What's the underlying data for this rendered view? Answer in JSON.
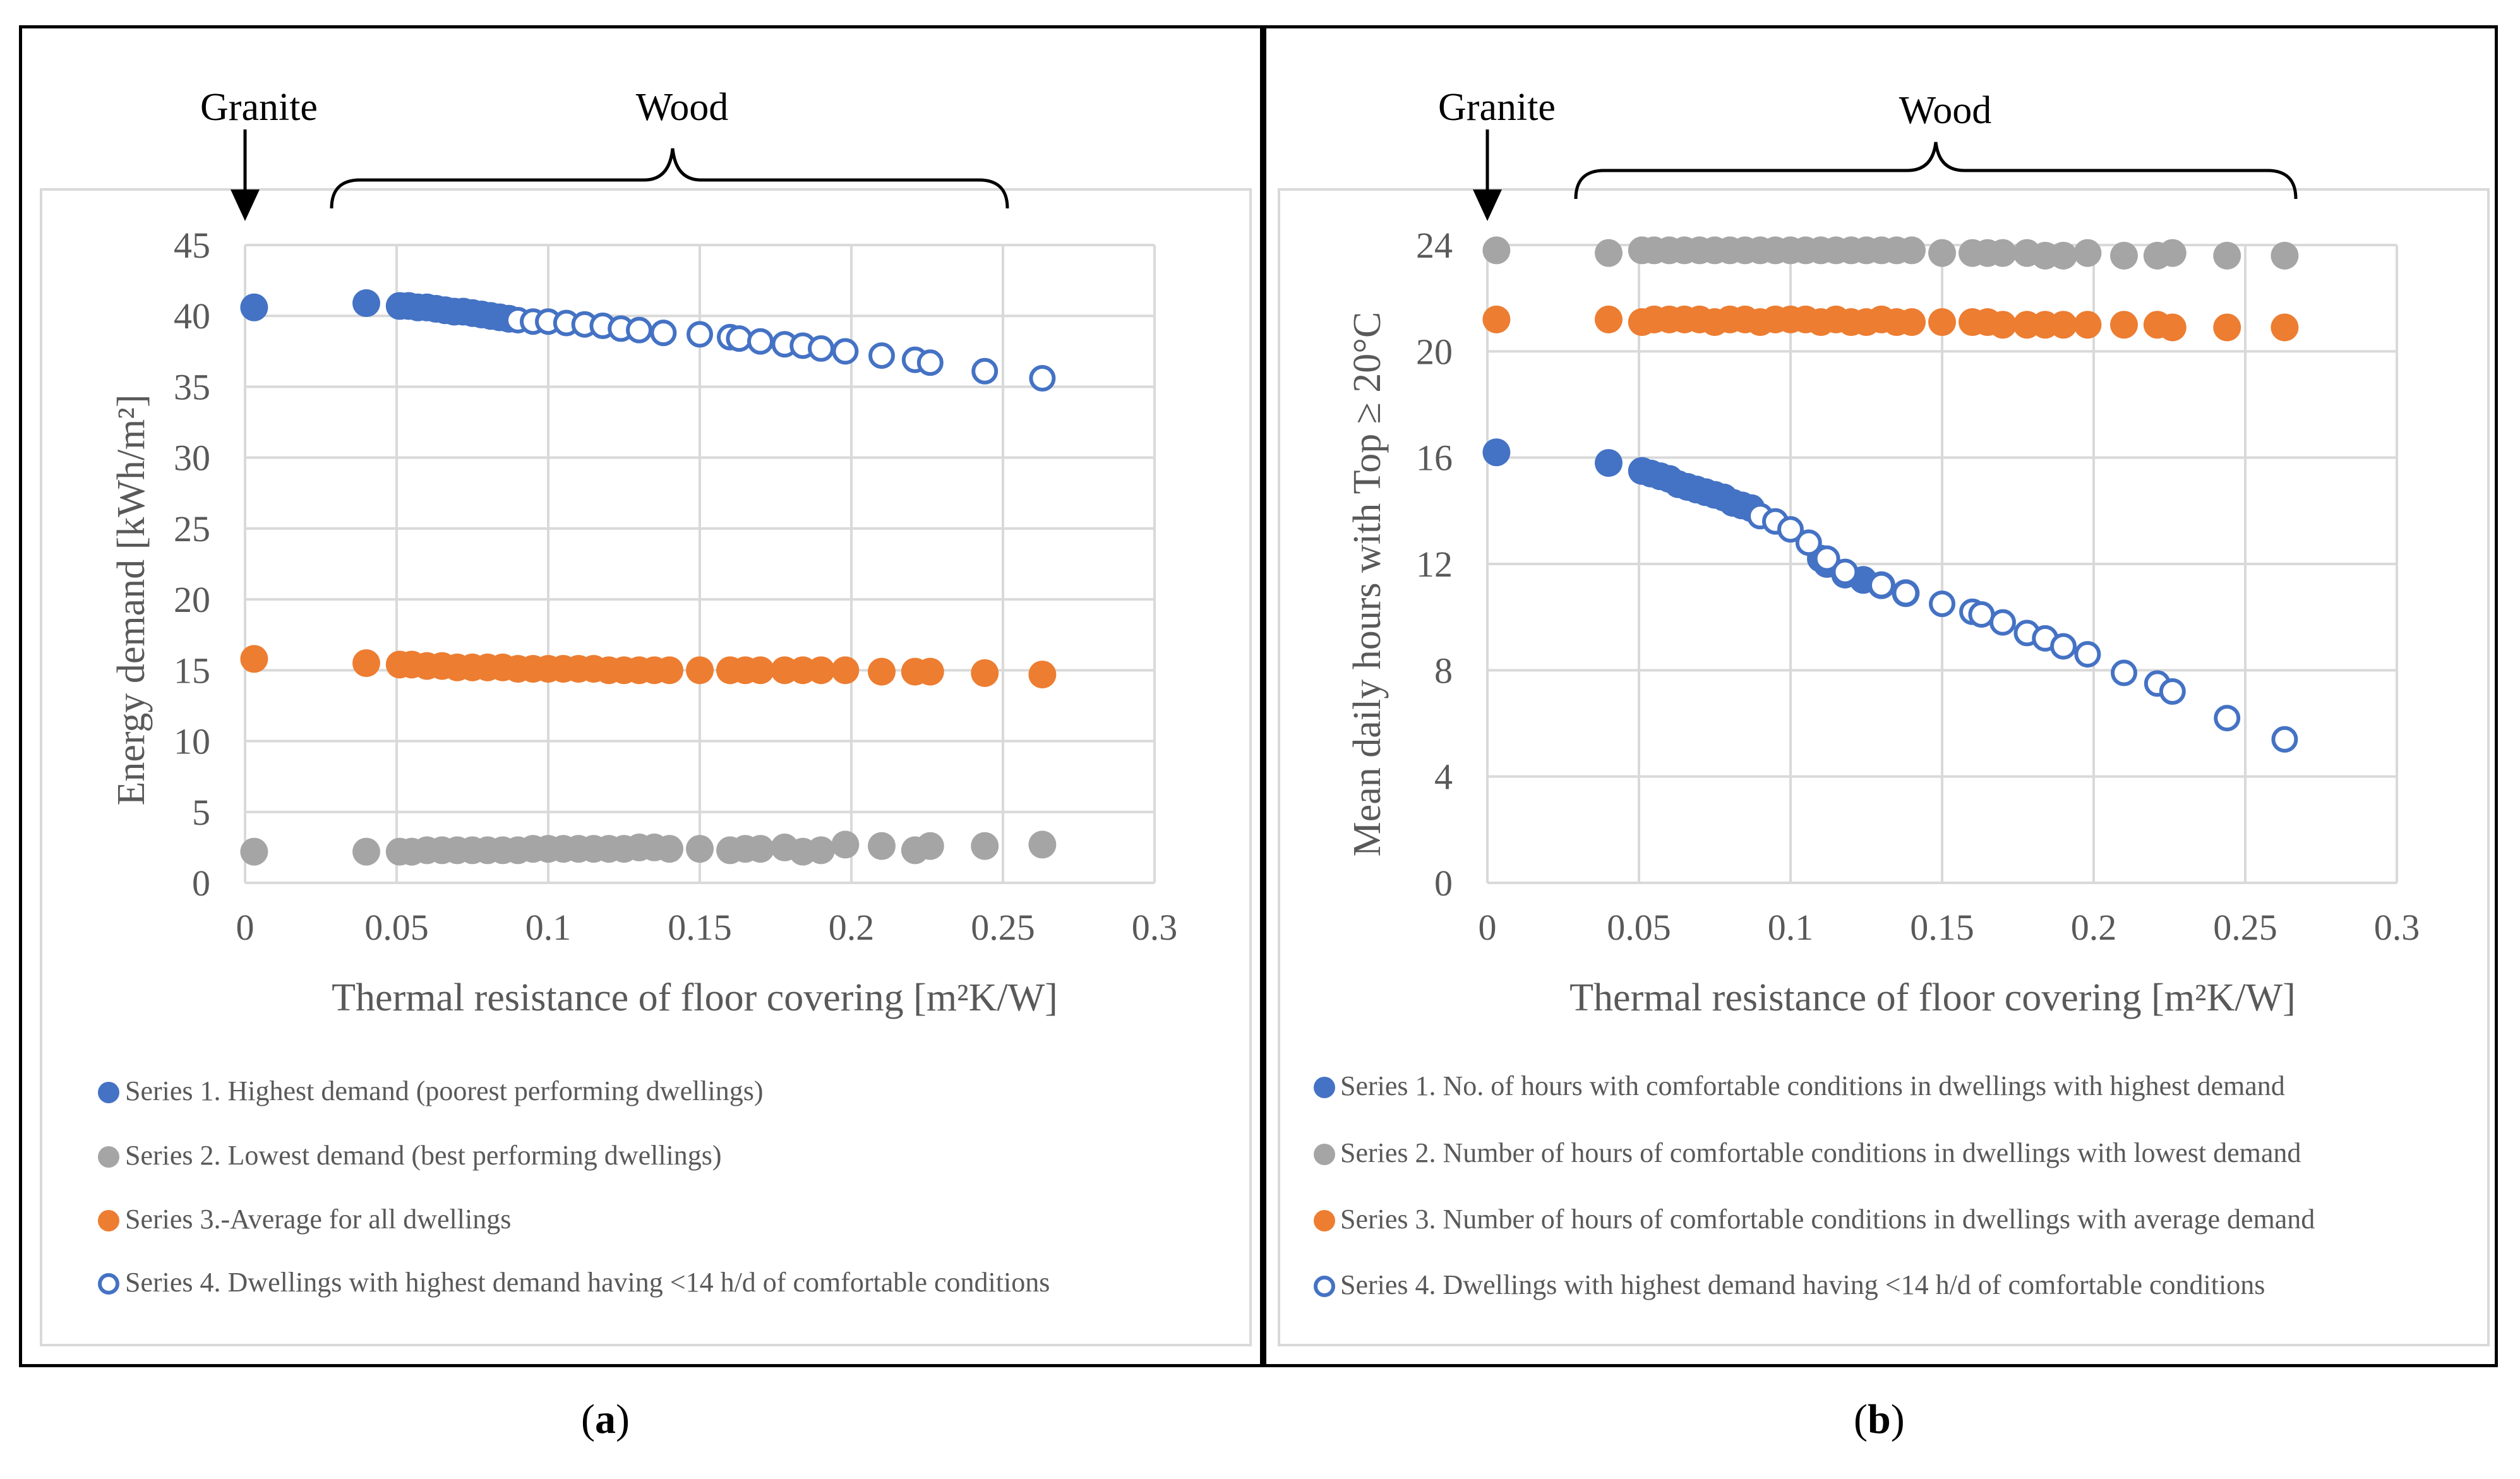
{
  "panels": {
    "a": {
      "label": "a",
      "annotations": {
        "granite": "Granite",
        "wood": "Wood"
      },
      "legend": [
        {
          "name": "Series 1. Highest demand (poorest performing dwellings)",
          "color": "#4472C4",
          "marker": "filled"
        },
        {
          "name": "Series 2. Lowest demand (best performing dwellings)",
          "color": "#A5A5A5",
          "marker": "filled"
        },
        {
          "name": "Series 3.-Average for all dwellings",
          "color": "#ED7D31",
          "marker": "filled"
        },
        {
          "name": "Series 4. Dwellings with highest demand having  <14 h/d of comfortable conditions",
          "color": "#4472C4",
          "marker": "open"
        }
      ]
    },
    "b": {
      "label": "b",
      "annotations": {
        "granite": "Granite",
        "wood": "Wood"
      },
      "legend": [
        {
          "name": "Series 1. No. of hours with comfortable conditions in dwellings with highest demand",
          "color": "#4472C4",
          "marker": "filled"
        },
        {
          "name": "Series 2. Number of hours of comfortable conditions in dwellings with lowest demand",
          "color": "#A5A5A5",
          "marker": "filled"
        },
        {
          "name": "Series 3. Number of hours of comfortable conditions in dwellings with average demand",
          "color": "#ED7D31",
          "marker": "filled"
        },
        {
          "name": "Series 4. Dwellings with highest demand having <14 h/d of comfortable conditions",
          "color": "#4472C4",
          "marker": "open"
        }
      ]
    }
  },
  "chart_data": [
    {
      "id": "a",
      "type": "scatter",
      "title": "",
      "xlabel": "Thermal resistance of floor covering [m²K/W]",
      "ylabel": "Energy demand [kWh/m²]",
      "xlim": [
        0,
        0.3
      ],
      "ylim": [
        0,
        45
      ],
      "x_ticks": [
        "0",
        "0.05",
        "0.1",
        "0.15",
        "0.2",
        "0.25",
        "0.3"
      ],
      "x_tick_values": [
        0,
        0.05,
        0.1,
        0.15,
        0.2,
        0.25,
        0.3
      ],
      "y_ticks": [
        "0",
        "5",
        "10",
        "15",
        "20",
        "25",
        "30",
        "35",
        "40",
        "45"
      ],
      "y_tick_values": [
        0,
        5,
        10,
        15,
        20,
        25,
        30,
        35,
        40,
        45
      ],
      "grid": true,
      "series": [
        {
          "name": "Series 1. Highest demand (poorest performing dwellings)",
          "color": "#4472C4",
          "marker": "filled",
          "x": [
            0.003,
            0.04,
            0.051,
            0.054,
            0.057,
            0.06,
            0.063,
            0.066,
            0.069,
            0.072,
            0.075,
            0.078,
            0.081,
            0.084,
            0.087
          ],
          "y": [
            40.6,
            40.9,
            40.7,
            40.7,
            40.6,
            40.6,
            40.5,
            40.4,
            40.3,
            40.3,
            40.2,
            40.1,
            40.0,
            39.9,
            39.8
          ]
        },
        {
          "name": "Series 2. Lowest demand (best performing dwellings)",
          "color": "#A5A5A5",
          "marker": "filled",
          "x": [
            0.003,
            0.04,
            0.051,
            0.055,
            0.06,
            0.065,
            0.07,
            0.075,
            0.08,
            0.085,
            0.09,
            0.095,
            0.1,
            0.105,
            0.11,
            0.115,
            0.12,
            0.125,
            0.13,
            0.135,
            0.14,
            0.15,
            0.16,
            0.165,
            0.17,
            0.178,
            0.184,
            0.19,
            0.198,
            0.21,
            0.221,
            0.226,
            0.244,
            0.263
          ],
          "y": [
            2.2,
            2.2,
            2.2,
            2.2,
            2.3,
            2.3,
            2.3,
            2.3,
            2.3,
            2.3,
            2.3,
            2.4,
            2.4,
            2.4,
            2.4,
            2.4,
            2.4,
            2.4,
            2.5,
            2.5,
            2.4,
            2.4,
            2.3,
            2.4,
            2.4,
            2.5,
            2.2,
            2.3,
            2.7,
            2.6,
            2.3,
            2.6,
            2.6,
            2.7
          ]
        },
        {
          "name": "Series 3.-Average for all dwellings",
          "color": "#ED7D31",
          "marker": "filled",
          "x": [
            0.003,
            0.04,
            0.051,
            0.055,
            0.06,
            0.065,
            0.07,
            0.075,
            0.08,
            0.085,
            0.09,
            0.095,
            0.1,
            0.105,
            0.11,
            0.115,
            0.12,
            0.125,
            0.13,
            0.135,
            0.14,
            0.15,
            0.16,
            0.165,
            0.17,
            0.178,
            0.184,
            0.19,
            0.198,
            0.21,
            0.221,
            0.226,
            0.244,
            0.263
          ],
          "y": [
            15.8,
            15.5,
            15.4,
            15.4,
            15.3,
            15.3,
            15.2,
            15.2,
            15.2,
            15.2,
            15.1,
            15.1,
            15.1,
            15.1,
            15.1,
            15.1,
            15.0,
            15.0,
            15.0,
            15.0,
            15.0,
            15.0,
            15.0,
            15.0,
            15.0,
            15.0,
            15.0,
            15.0,
            15.0,
            14.9,
            14.9,
            14.9,
            14.8,
            14.7
          ]
        },
        {
          "name": "Series 4. Dwellings with highest demand having  <14 h/d of comfortable conditions",
          "color": "#4472C4",
          "marker": "open",
          "x": [
            0.09,
            0.095,
            0.1,
            0.106,
            0.112,
            0.118,
            0.124,
            0.13,
            0.138,
            0.15,
            0.16,
            0.163,
            0.17,
            0.178,
            0.184,
            0.19,
            0.198,
            0.21,
            0.221,
            0.226,
            0.244,
            0.263
          ],
          "y": [
            39.7,
            39.6,
            39.6,
            39.5,
            39.4,
            39.3,
            39.1,
            39.0,
            38.8,
            38.7,
            38.5,
            38.4,
            38.2,
            38.0,
            37.9,
            37.7,
            37.5,
            37.2,
            36.9,
            36.7,
            36.1,
            35.6
          ]
        }
      ]
    },
    {
      "id": "b",
      "type": "scatter",
      "title": "",
      "xlabel": "Thermal resistance of floor covering [m²K/W]",
      "ylabel": "Mean daily hours with Top ≥ 20°C",
      "xlim": [
        0,
        0.3
      ],
      "ylim": [
        0,
        24
      ],
      "x_ticks": [
        "0",
        "0.05",
        "0.1",
        "0.15",
        "0.2",
        "0.25",
        "0.3"
      ],
      "x_tick_values": [
        0,
        0.05,
        0.1,
        0.15,
        0.2,
        0.25,
        0.3
      ],
      "y_ticks": [
        "0",
        "4",
        "8",
        "12",
        "16",
        "20",
        "24"
      ],
      "y_tick_values": [
        0,
        4,
        8,
        12,
        16,
        20,
        24
      ],
      "grid": true,
      "series": [
        {
          "name": "Series 1. No. of hours with comfortable conditions in dwellings with highest demand",
          "color": "#4472C4",
          "marker": "filled",
          "x": [
            0.003,
            0.04,
            0.051,
            0.054,
            0.057,
            0.06,
            0.063,
            0.066,
            0.069,
            0.072,
            0.075,
            0.078,
            0.081,
            0.084,
            0.087,
            0.11,
            0.112,
            0.118,
            0.124,
            0.13,
            0.138
          ],
          "y": [
            16.2,
            15.8,
            15.5,
            15.4,
            15.3,
            15.2,
            15.0,
            14.9,
            14.8,
            14.7,
            14.6,
            14.5,
            14.3,
            14.2,
            14.1,
            12.2,
            12.0,
            11.6,
            11.4,
            11.2,
            10.9
          ]
        },
        {
          "name": "Series 2. Number of hours of comfortable conditions in dwellings with lowest demand",
          "color": "#A5A5A5",
          "marker": "filled",
          "x": [
            0.003,
            0.04,
            0.051,
            0.055,
            0.06,
            0.065,
            0.07,
            0.075,
            0.08,
            0.085,
            0.09,
            0.095,
            0.1,
            0.105,
            0.11,
            0.115,
            0.12,
            0.125,
            0.13,
            0.135,
            0.14,
            0.15,
            0.16,
            0.165,
            0.17,
            0.178,
            0.184,
            0.19,
            0.198,
            0.21,
            0.221,
            0.226,
            0.244,
            0.263
          ],
          "y": [
            23.8,
            23.7,
            23.8,
            23.8,
            23.8,
            23.8,
            23.8,
            23.8,
            23.8,
            23.8,
            23.8,
            23.8,
            23.8,
            23.8,
            23.8,
            23.8,
            23.8,
            23.8,
            23.8,
            23.8,
            23.8,
            23.7,
            23.7,
            23.7,
            23.7,
            23.7,
            23.6,
            23.6,
            23.7,
            23.6,
            23.6,
            23.7,
            23.6,
            23.6
          ]
        },
        {
          "name": "Series 3. Number of hours of comfortable conditions in dwellings with average demand",
          "color": "#ED7D31",
          "marker": "filled",
          "x": [
            0.003,
            0.04,
            0.051,
            0.055,
            0.06,
            0.065,
            0.07,
            0.075,
            0.08,
            0.085,
            0.09,
            0.095,
            0.1,
            0.105,
            0.11,
            0.115,
            0.12,
            0.125,
            0.13,
            0.135,
            0.14,
            0.15,
            0.16,
            0.165,
            0.17,
            0.178,
            0.184,
            0.19,
            0.198,
            0.21,
            0.221,
            0.226,
            0.244,
            0.263
          ],
          "y": [
            21.2,
            21.2,
            21.1,
            21.2,
            21.2,
            21.2,
            21.2,
            21.1,
            21.2,
            21.2,
            21.1,
            21.2,
            21.2,
            21.2,
            21.1,
            21.2,
            21.1,
            21.1,
            21.2,
            21.1,
            21.1,
            21.1,
            21.1,
            21.1,
            21.0,
            21.0,
            21.0,
            21.0,
            21.0,
            21.0,
            21.0,
            20.9,
            20.9,
            20.9
          ]
        },
        {
          "name": "Series 4. Dwellings with highest demand having <14 h/d of comfortable conditions",
          "color": "#4472C4",
          "marker": "open",
          "x": [
            0.09,
            0.095,
            0.1,
            0.106,
            0.112,
            0.118,
            0.13,
            0.138,
            0.15,
            0.16,
            0.163,
            0.17,
            0.178,
            0.184,
            0.19,
            0.198,
            0.21,
            0.221,
            0.226,
            0.244,
            0.263
          ],
          "y": [
            13.8,
            13.6,
            13.3,
            12.8,
            12.2,
            11.7,
            11.2,
            10.9,
            10.5,
            10.2,
            10.1,
            9.8,
            9.4,
            9.2,
            8.9,
            8.6,
            7.9,
            7.5,
            7.2,
            6.2,
            5.4
          ]
        }
      ]
    }
  ]
}
